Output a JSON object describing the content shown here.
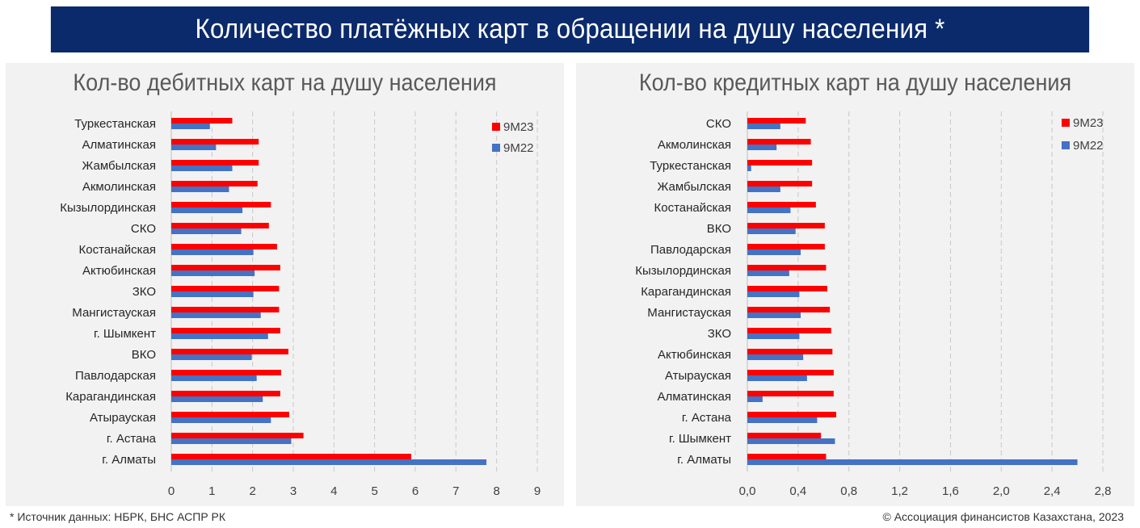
{
  "header": {
    "title": "Количество платёжных карт в обращении на душу населения *"
  },
  "footer": {
    "source": "* Источник данных: НБРК, БНС АСПР РК",
    "copyright": "© Ассоциация финансистов Казахстана, 2023"
  },
  "colors": {
    "header_bg": "#0b2a6b",
    "series_9M23": "#ff0000",
    "series_9M22": "#4472c4"
  },
  "chart_data": [
    {
      "type": "bar",
      "orientation": "horizontal",
      "title": "Кол-во дебитных карт на душу населения",
      "categories": [
        "Туркестанская",
        "Алматинская",
        "Жамбылская",
        "Акмолинская",
        "Кызылординская",
        "СКО",
        "Костанайская",
        "Актюбинская",
        "ЗКО",
        "Мангистауская",
        "г. Шымкент",
        "ВКО",
        "Павлодарская",
        "Карагандинская",
        "Атырауская",
        "г. Астана",
        "г. Алматы"
      ],
      "series": [
        {
          "name": "9М23",
          "color": "#ff0000",
          "values": [
            1.5,
            2.15,
            2.15,
            2.12,
            2.45,
            2.4,
            2.6,
            2.68,
            2.65,
            2.65,
            2.68,
            2.88,
            2.7,
            2.68,
            2.9,
            3.25,
            5.9
          ]
        },
        {
          "name": "9М22",
          "color": "#4472c4",
          "values": [
            0.95,
            1.1,
            1.5,
            1.42,
            1.75,
            1.72,
            2.02,
            2.05,
            2.02,
            2.2,
            2.38,
            1.98,
            2.1,
            2.25,
            2.45,
            2.95,
            7.75
          ]
        }
      ],
      "ticks": [
        "0",
        "1",
        "2",
        "3",
        "4",
        "5",
        "6",
        "7",
        "8",
        "9"
      ],
      "xlim": [
        0,
        9
      ],
      "grid": true,
      "legend": "top-right"
    },
    {
      "type": "bar",
      "orientation": "horizontal",
      "title": "Кол-во кредитных карт на душу населения",
      "categories": [
        "СКО",
        "Акмолинская",
        "Туркестанская",
        "Жамбылская",
        "Костанайская",
        "ВКО",
        "Павлодарская",
        "Кызылординская",
        "Карагандинская",
        "Мангистауская",
        "ЗКО",
        "Актюбинская",
        "Атырауская",
        "Алматинская",
        "г. Астана",
        "г. Шымкент",
        "г. Алматы"
      ],
      "series": [
        {
          "name": "9М23",
          "color": "#ff0000",
          "values": [
            0.46,
            0.5,
            0.51,
            0.51,
            0.54,
            0.61,
            0.61,
            0.62,
            0.63,
            0.65,
            0.66,
            0.67,
            0.68,
            0.68,
            0.7,
            0.58,
            0.62
          ]
        },
        {
          "name": "9М22",
          "color": "#4472c4",
          "values": [
            0.26,
            0.23,
            0.03,
            0.26,
            0.34,
            0.38,
            0.42,
            0.33,
            0.41,
            0.42,
            0.41,
            0.44,
            0.47,
            0.12,
            0.55,
            0.69,
            2.6
          ]
        }
      ],
      "ticks": [
        "0,0",
        "0,4",
        "0,8",
        "1,2",
        "1,6",
        "2,0",
        "2,4",
        "2,8"
      ],
      "xlim": [
        0,
        2.8
      ],
      "grid": true,
      "legend": "top-right"
    }
  ]
}
